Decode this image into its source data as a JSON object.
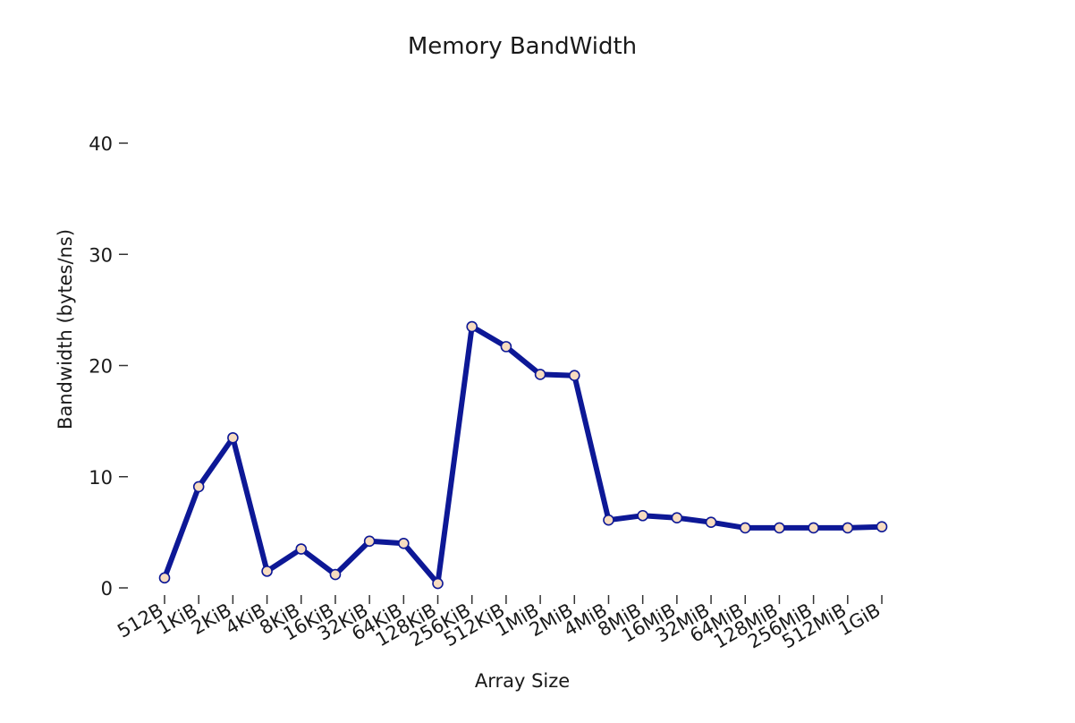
{
  "chart_data": {
    "type": "line",
    "title": "Memory BandWidth",
    "xlabel": "Array Size",
    "ylabel": "Bandwidth (bytes/ns)",
    "ylim": [
      0,
      45
    ],
    "yticks": [
      0,
      10,
      20,
      30,
      40
    ],
    "grid": false,
    "colors": {
      "line": "#0d1896",
      "marker_fill": "#f7dcc0"
    },
    "categories": [
      "512B",
      "1KiB",
      "2KiB",
      "4KiB",
      "8KiB",
      "16KiB",
      "32KiB",
      "64KiB",
      "128KiB",
      "256KiB",
      "512KiB",
      "1MiB",
      "2MiB",
      "4MiB",
      "8MiB",
      "16MiB",
      "32MiB",
      "64MiB",
      "128MiB",
      "256MiB",
      "512MiB",
      "1GiB"
    ],
    "series": [
      {
        "values": [
          0.9,
          9.1,
          13.5,
          1.5,
          3.5,
          1.2,
          4.2,
          4.0,
          0.4,
          23.5,
          21.7,
          19.2,
          19.1,
          6.1,
          6.5,
          6.3,
          5.9,
          5.4,
          5.4,
          5.4,
          5.4,
          5.5
        ]
      }
    ]
  }
}
